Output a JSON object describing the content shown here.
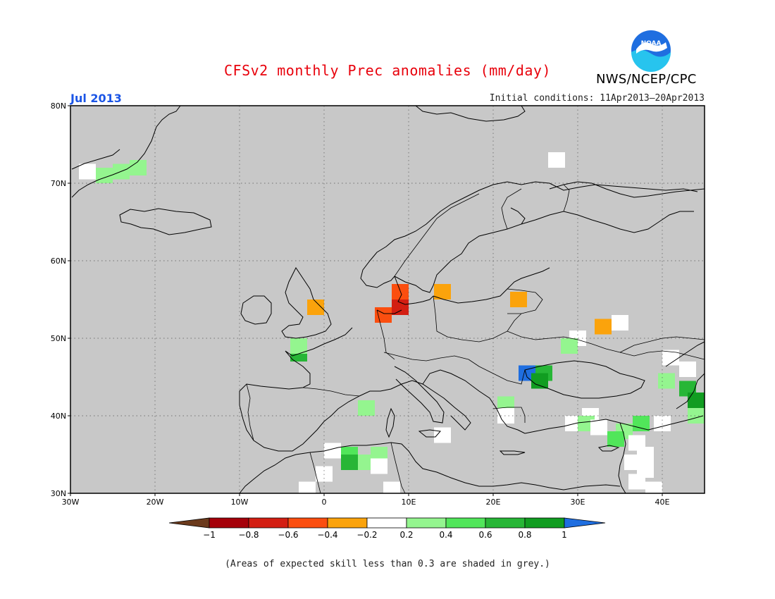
{
  "title": "CFSv2 monthly Prec anomalies (mm/day)",
  "agency": "NWS/NCEP/CPC",
  "logo_text": "NOAA",
  "month_label": "Jul 2013",
  "initial_conditions": "Initial conditions: 11Apr2013–20Apr2013",
  "footnote": "(Areas of expected skill less than 0.3 are shaded in grey.)",
  "map": {
    "lon_range": [
      -30,
      45
    ],
    "lat_range": [
      30,
      80
    ],
    "background_color": "#c8c8c8",
    "lat_ticks": [
      "30N",
      "40N",
      "50N",
      "60N",
      "70N",
      "80N"
    ],
    "lon_ticks": [
      "30W",
      "20W",
      "10W",
      "0",
      "10E",
      "20E",
      "30E",
      "40E"
    ],
    "grid": "dotted"
  },
  "legend": {
    "bins": [
      {
        "color": "#6b3a1c"
      },
      {
        "color": "#a50009"
      },
      {
        "color": "#d31e12"
      },
      {
        "color": "#fb4e0f"
      },
      {
        "color": "#fba30c"
      },
      {
        "color": "#ffffff"
      },
      {
        "color": "#94f58f"
      },
      {
        "color": "#51e65a"
      },
      {
        "color": "#27b636"
      },
      {
        "color": "#119d21"
      },
      {
        "color": "#1f6ee0"
      }
    ],
    "labels": [
      "−1",
      "−0.8",
      "−0.6",
      "−0.4",
      "−0.2",
      "0.2",
      "0.4",
      "0.6",
      "0.8",
      "1"
    ]
  },
  "anomaly_cells": [
    {
      "lon": -26.0,
      "lat": 71.0,
      "color": "#94f58f"
    },
    {
      "lon": -24.0,
      "lat": 71.5,
      "color": "#94f58f"
    },
    {
      "lon": -22.0,
      "lat": 72.0,
      "color": "#94f58f"
    },
    {
      "lon": -28.0,
      "lat": 71.5,
      "color": "#ffffff"
    },
    {
      "lon": -1.0,
      "lat": 54.0,
      "color": "#fba30c"
    },
    {
      "lon": 9.0,
      "lat": 56.0,
      "color": "#fb4e0f"
    },
    {
      "lon": 9.0,
      "lat": 54.0,
      "color": "#d31e12"
    },
    {
      "lon": 7.0,
      "lat": 53.0,
      "color": "#fb4e0f"
    },
    {
      "lon": 14.0,
      "lat": 56.0,
      "color": "#fba30c"
    },
    {
      "lon": 23.0,
      "lat": 55.0,
      "color": "#fba30c"
    },
    {
      "lon": 33.0,
      "lat": 51.5,
      "color": "#fba30c"
    },
    {
      "lon": 35.0,
      "lat": 52.0,
      "color": "#ffffff"
    },
    {
      "lon": 30.0,
      "lat": 50.0,
      "color": "#ffffff"
    },
    {
      "lon": 29.0,
      "lat": 49.0,
      "color": "#94f58f"
    },
    {
      "lon": -3.0,
      "lat": 48.0,
      "color": "#27b636"
    },
    {
      "lon": -3.0,
      "lat": 49.0,
      "color": "#94f58f"
    },
    {
      "lon": 24.0,
      "lat": 45.5,
      "color": "#1f6ee0"
    },
    {
      "lon": 26.0,
      "lat": 45.5,
      "color": "#27b636"
    },
    {
      "lon": 25.5,
      "lat": 44.5,
      "color": "#119d21"
    },
    {
      "lon": 43.0,
      "lat": 46.0,
      "color": "#ffffff"
    },
    {
      "lon": 41.0,
      "lat": 47.5,
      "color": "#ffffff"
    },
    {
      "lon": 40.5,
      "lat": 44.5,
      "color": "#94f58f"
    },
    {
      "lon": 43.0,
      "lat": 43.5,
      "color": "#27b636"
    },
    {
      "lon": 44.0,
      "lat": 42.0,
      "color": "#119d21"
    },
    {
      "lon": 44.0,
      "lat": 40.0,
      "color": "#94f58f"
    },
    {
      "lon": 5.0,
      "lat": 41.0,
      "color": "#94f58f"
    },
    {
      "lon": 1.0,
      "lat": 35.5,
      "color": "#ffffff"
    },
    {
      "lon": 3.0,
      "lat": 35.0,
      "color": "#51e65a"
    },
    {
      "lon": 6.5,
      "lat": 35.0,
      "color": "#94f58f"
    },
    {
      "lon": 5.0,
      "lat": 34.0,
      "color": "#94f58f"
    },
    {
      "lon": 3.0,
      "lat": 34.0,
      "color": "#27b636"
    },
    {
      "lon": 6.5,
      "lat": 33.5,
      "color": "#ffffff"
    },
    {
      "lon": 0.0,
      "lat": 32.5,
      "color": "#ffffff"
    },
    {
      "lon": -2.0,
      "lat": 30.5,
      "color": "#ffffff"
    },
    {
      "lon": 8.0,
      "lat": 30.5,
      "color": "#ffffff"
    },
    {
      "lon": 21.5,
      "lat": 41.5,
      "color": "#94f58f"
    },
    {
      "lon": 21.5,
      "lat": 40.0,
      "color": "#ffffff"
    },
    {
      "lon": 14.0,
      "lat": 37.5,
      "color": "#ffffff"
    },
    {
      "lon": 31.5,
      "lat": 40.0,
      "color": "#ffffff"
    },
    {
      "lon": 29.5,
      "lat": 39.0,
      "color": "#ffffff"
    },
    {
      "lon": 31.0,
      "lat": 39.0,
      "color": "#94f58f"
    },
    {
      "lon": 32.5,
      "lat": 38.5,
      "color": "#ffffff"
    },
    {
      "lon": 37.5,
      "lat": 39.0,
      "color": "#51e65a"
    },
    {
      "lon": 40.0,
      "lat": 39.0,
      "color": "#ffffff"
    },
    {
      "lon": 35.5,
      "lat": 38.0,
      "color": "#94f58f"
    },
    {
      "lon": 34.5,
      "lat": 37.0,
      "color": "#51e65a"
    },
    {
      "lon": 37.0,
      "lat": 36.5,
      "color": "#ffffff"
    },
    {
      "lon": 38.0,
      "lat": 35.0,
      "color": "#ffffff"
    },
    {
      "lon": 36.5,
      "lat": 34.0,
      "color": "#ffffff"
    },
    {
      "lon": 38.0,
      "lat": 33.0,
      "color": "#ffffff"
    },
    {
      "lon": 37.0,
      "lat": 31.5,
      "color": "#ffffff"
    },
    {
      "lon": 39.0,
      "lat": 30.5,
      "color": "#ffffff"
    },
    {
      "lon": 27.5,
      "lat": 73.0,
      "color": "#ffffff"
    }
  ]
}
